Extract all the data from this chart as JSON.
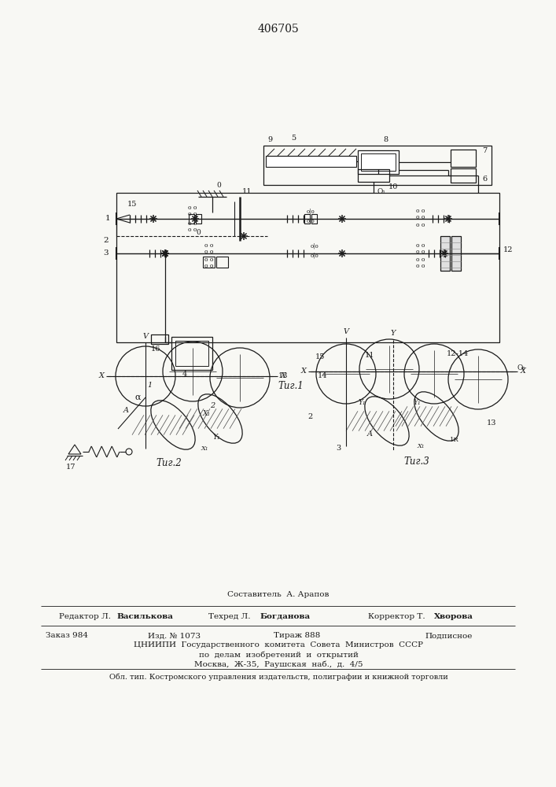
{
  "title": "406705",
  "fig1_caption": "Τиг.1",
  "fig2_caption": "Τиг.2",
  "fig3_caption": "Τиг.3",
  "footer_line1": "Составитель  А. Арапов",
  "footer_ed": "Редактор Л.",
  "footer_ed_bold": "Василькова",
  "footer_tech": "Техред Л.",
  "footer_tech_bold": "Богданова",
  "footer_corr": "Корректор Т.",
  "footer_corr_bold": "Хворова",
  "footer_order": "Заказ 984",
  "footer_izd": "Изд. № 1073",
  "footer_tirazh": "Тираж 888",
  "footer_podp": "Подписное",
  "footer_cniipI": "ЦНИИПИ  Государственного  комитета  Совета  Министров  СССР",
  "footer_po_delam": "по  делам  изобретений  и  открытий",
  "footer_moscow": "Москва,  Ж-35,  Раушская  наб.,  д.  4/5",
  "footer_obl": "Обл. тип. Костромского управления издательств, полиграфии и книжной торговли",
  "bg_color": "#f8f8f4",
  "lc": "#1a1a1a"
}
